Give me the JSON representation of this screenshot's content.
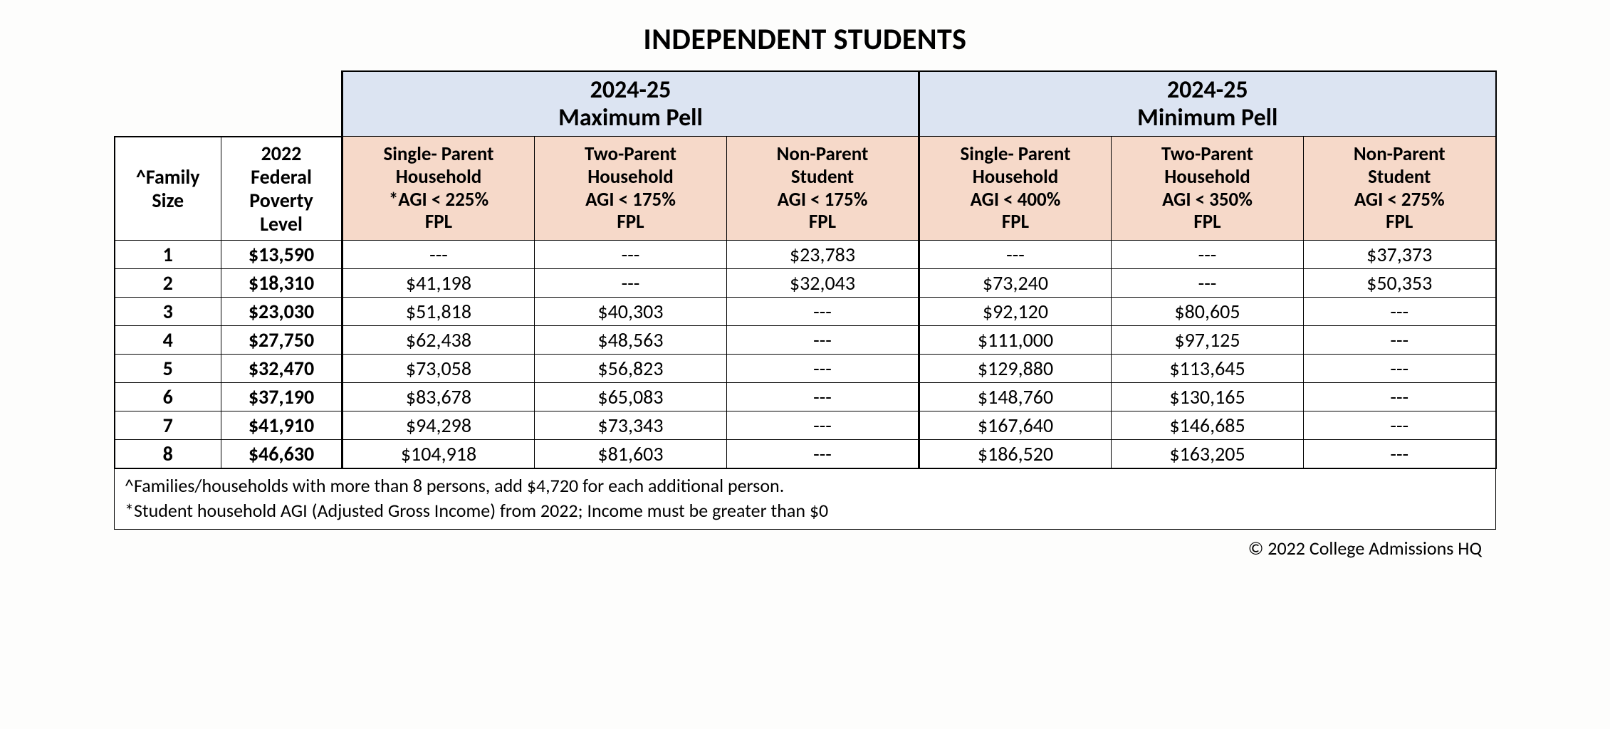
{
  "title": "INDEPENDENT STUDENTS",
  "year_headers": {
    "max": "2024-25\nMaximum Pell",
    "min": "2024-25\nMinimum Pell"
  },
  "row_headers": {
    "family_size": "^Family\nSize",
    "fpl": "2022\nFederal\nPoverty\nLevel"
  },
  "sub_headers": {
    "max_sp": "Single- Parent\nHousehold\n*AGI < 225%\nFPL",
    "max_tp": "Two-Parent\nHousehold\nAGI < 175%\nFPL",
    "max_np": "Non-Parent\nStudent\nAGI < 175%\nFPL",
    "min_sp": "Single- Parent\nHousehold\nAGI < 400%\nFPL",
    "min_tp": "Two-Parent\nHousehold\nAGI < 350%\nFPL",
    "min_np": "Non-Parent\nStudent\nAGI < 275%\nFPL"
  },
  "rows": [
    {
      "size": "1",
      "fpl": "$13,590",
      "max_sp": "---",
      "max_tp": "---",
      "max_np": "$23,783",
      "min_sp": "---",
      "min_tp": "---",
      "min_np": "$37,373"
    },
    {
      "size": "2",
      "fpl": "$18,310",
      "max_sp": "$41,198",
      "max_tp": "---",
      "max_np": "$32,043",
      "min_sp": "$73,240",
      "min_tp": "---",
      "min_np": "$50,353"
    },
    {
      "size": "3",
      "fpl": "$23,030",
      "max_sp": "$51,818",
      "max_tp": "$40,303",
      "max_np": "---",
      "min_sp": "$92,120",
      "min_tp": "$80,605",
      "min_np": "---"
    },
    {
      "size": "4",
      "fpl": "$27,750",
      "max_sp": "$62,438",
      "max_tp": "$48,563",
      "max_np": "---",
      "min_sp": "$111,000",
      "min_tp": "$97,125",
      "min_np": "---"
    },
    {
      "size": "5",
      "fpl": "$32,470",
      "max_sp": "$73,058",
      "max_tp": "$56,823",
      "max_np": "---",
      "min_sp": "$129,880",
      "min_tp": "$113,645",
      "min_np": "---"
    },
    {
      "size": "6",
      "fpl": "$37,190",
      "max_sp": "$83,678",
      "max_tp": "$65,083",
      "max_np": "---",
      "min_sp": "$148,760",
      "min_tp": "$130,165",
      "min_np": "---"
    },
    {
      "size": "7",
      "fpl": "$41,910",
      "max_sp": "$94,298",
      "max_tp": "$73,343",
      "max_np": "---",
      "min_sp": "$167,640",
      "min_tp": "$146,685",
      "min_np": "---"
    },
    {
      "size": "8",
      "fpl": "$46,630",
      "max_sp": "$104,918",
      "max_tp": "$81,603",
      "max_np": "---",
      "min_sp": "$186,520",
      "min_tp": "$163,205",
      "min_np": "---"
    }
  ],
  "footnotes": {
    "a": "^Families/households with more than 8 persons, add $4,720 for each additional person.",
    "b": "*Student household AGI (Adjusted Gross Income) from 2022; Income must be greater than $0"
  },
  "copyright": "© 2022 College Admissions HQ",
  "style": {
    "header_bg": "#dce4f2",
    "subheader_bg": "#f6d9c9",
    "border_color": "#000000",
    "background": "#fdfdfc",
    "title_fontsize": 42,
    "header_fontsize": 34,
    "sub_fontsize": 27,
    "cell_fontsize": 28
  }
}
